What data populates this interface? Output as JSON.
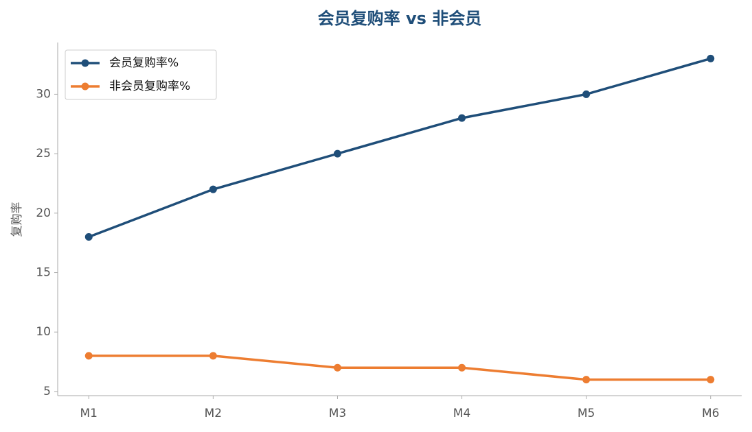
{
  "chart_data": {
    "type": "line",
    "title": "会员复购率 vs 非会员",
    "y_label": "复购率",
    "categories": [
      "M1",
      "M2",
      "M3",
      "M4",
      "M5",
      "M6"
    ],
    "series": [
      {
        "name": "会员复购率%",
        "color": "#1f4e79",
        "values": [
          18,
          22,
          25,
          28,
          30,
          33
        ]
      },
      {
        "name": "非会员复购率%",
        "color": "#ed7d31",
        "values": [
          8,
          8,
          7,
          7,
          6,
          6
        ]
      }
    ],
    "ylim": [
      4.65,
      34.35
    ],
    "yticks": [
      5,
      10,
      15,
      20,
      25,
      30
    ],
    "grid": false,
    "legend": "upper-left"
  }
}
